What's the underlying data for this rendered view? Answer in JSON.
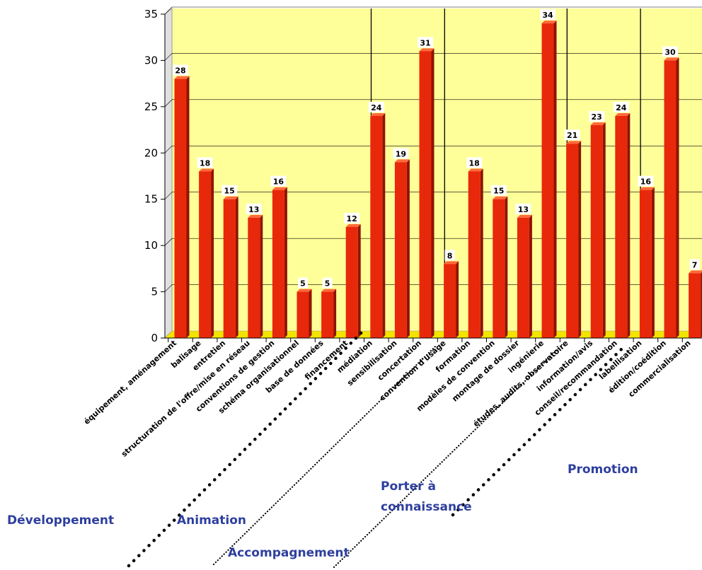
{
  "chart_data": {
    "type": "bar",
    "title": "",
    "xlabel": "",
    "ylabel": "",
    "ylim": [
      0,
      35
    ],
    "yticks": [
      0,
      5,
      10,
      15,
      20,
      25,
      30,
      35
    ],
    "grid": true,
    "legend": "none",
    "colors": {
      "bar_front": "#e8280a",
      "bar_side": "#8e1400",
      "bar_top": "#ff6a3c",
      "plot_bg": "#ffff99",
      "floor": "#f2e400",
      "group_label": "#2e3f9e"
    },
    "categories": [
      "équipement, aménagement",
      "balisage",
      "entretien",
      "structuration de l'offre/mise en réseau",
      "conventions de gestion",
      "schéma organisationnel",
      "base de données",
      "financement",
      "médiation",
      "sensibilisation",
      "concertation",
      "convention d'usage",
      "formation",
      "modèles de convention",
      "montage de dossier",
      "ingénierie",
      "études, audits, observatoire",
      "information/avis",
      "conseil/recommandation",
      "labellisation",
      "édition/coédition",
      "commercialisation"
    ],
    "values": [
      28,
      18,
      15,
      13,
      16,
      5,
      5,
      12,
      24,
      19,
      31,
      8,
      18,
      15,
      13,
      34,
      21,
      23,
      24,
      16,
      30,
      7
    ],
    "groups": [
      {
        "name": "Développement",
        "lines": [
          "Développement"
        ]
      },
      {
        "name": "Animation",
        "lines": [
          "Animation"
        ]
      },
      {
        "name": "Accompagnement",
        "lines": [
          "Accompagnement"
        ]
      },
      {
        "name": "Porter à connaissance",
        "lines": [
          "Porter  à",
          "connaissance"
        ]
      },
      {
        "name": "Promotion",
        "lines": [
          "Promotion"
        ]
      }
    ]
  }
}
